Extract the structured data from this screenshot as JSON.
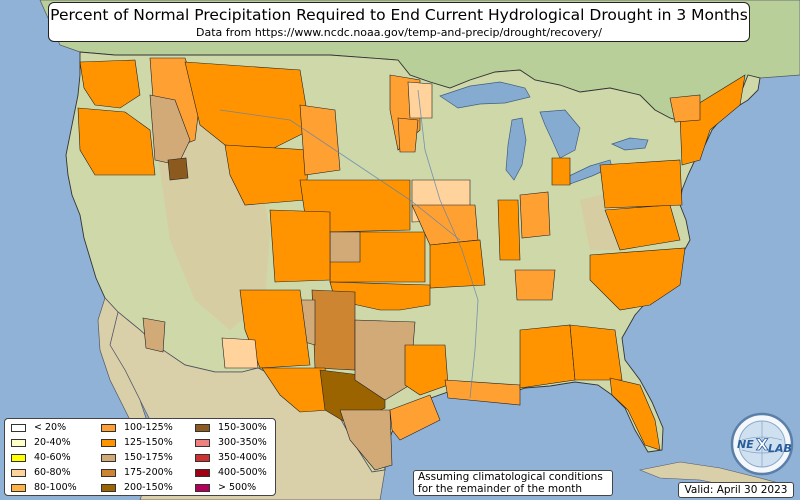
{
  "title": "Percent of Normal Precipitation Required to End Current Hydrological Drought in 3 Months",
  "subtitle": "Data from https://www.ncdc.noaa.gov/temp-and-precip/drought/recovery/",
  "legend": [
    {
      "label": "< 20%",
      "color": "#ffffff"
    },
    {
      "label": "20-40%",
      "color": "#ffffc8"
    },
    {
      "label": "40-60%",
      "color": "#ffff00"
    },
    {
      "label": "60-80%",
      "color": "#ffd39b"
    },
    {
      "label": "80-100%",
      "color": "#ffb347"
    },
    {
      "label": "100-125%",
      "color": "#ffa033"
    },
    {
      "label": "125-150%",
      "color": "#ff9400"
    },
    {
      "label": "150-175%",
      "color": "#d2aa78"
    },
    {
      "label": "175-200%",
      "color": "#cd8532"
    },
    {
      "label": "200-150%",
      "color": "#9b6400"
    },
    {
      "label": "150-300%",
      "color": "#8c5a1e"
    },
    {
      "label": "300-350%",
      "color": "#f08080"
    },
    {
      "label": "350-400%",
      "color": "#cd3232"
    },
    {
      "label": "400-500%",
      "color": "#a00014"
    },
    {
      "label": "> 500%",
      "color": "#b4005a"
    }
  ],
  "assumption_note": {
    "line1": "Assuming climatological conditions",
    "line2": "for the remainder of the month"
  },
  "valid_label": "Valid: April 30 2023",
  "logo": {
    "text_left": "NE",
    "text_right": "LAB"
  },
  "colors": {
    "ocean": "#8fb2d6",
    "land_terrain": "#cfd8a8",
    "mountains": "#d8c9a0",
    "canada": "#b9cf9a",
    "mexico": "#d9cfa8",
    "lakes": "#86abd1"
  }
}
